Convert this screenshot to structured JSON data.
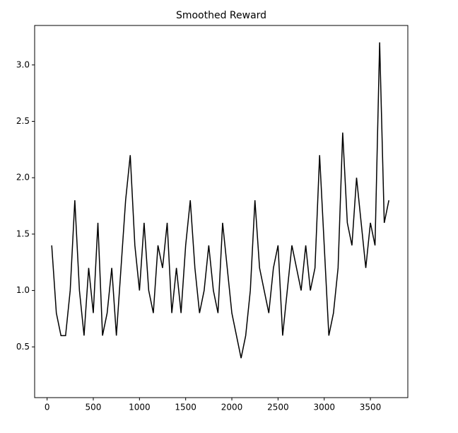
{
  "chart_data": {
    "type": "line",
    "title": "Smoothed Reward",
    "x": [
      50,
      100,
      150,
      200,
      250,
      300,
      350,
      400,
      450,
      500,
      550,
      600,
      650,
      700,
      750,
      800,
      850,
      900,
      950,
      1000,
      1050,
      1100,
      1150,
      1200,
      1250,
      1300,
      1350,
      1400,
      1450,
      1500,
      1550,
      1600,
      1650,
      1700,
      1750,
      1800,
      1850,
      1900,
      1950,
      2000,
      2050,
      2100,
      2150,
      2200,
      2250,
      2300,
      2350,
      2400,
      2450,
      2500,
      2550,
      2600,
      2650,
      2700,
      2750,
      2800,
      2850,
      2900,
      2950,
      3000,
      3050,
      3100,
      3150,
      3200,
      3250,
      3300,
      3350,
      3400,
      3450,
      3500,
      3550,
      3600,
      3650,
      3700
    ],
    "series": [
      {
        "color": "#000000",
        "values": [
          1.4,
          0.8,
          0.6,
          0.6,
          1.0,
          1.8,
          1.0,
          0.6,
          1.2,
          0.8,
          1.6,
          0.6,
          0.8,
          1.2,
          0.6,
          1.2,
          1.8,
          2.2,
          1.4,
          1.0,
          1.6,
          1.0,
          0.8,
          1.4,
          1.2,
          1.6,
          0.8,
          1.2,
          0.8,
          1.4,
          1.8,
          1.2,
          0.8,
          1.0,
          1.4,
          1.0,
          0.8,
          1.6,
          1.2,
          0.8,
          0.6,
          0.4,
          0.6,
          1.0,
          1.8,
          1.2,
          1.0,
          0.8,
          1.2,
          1.4,
          0.6,
          1.0,
          1.4,
          1.2,
          1.0,
          1.4,
          1.0,
          1.2,
          2.2,
          1.4,
          0.6,
          0.8,
          1.2,
          2.4,
          1.6,
          1.4,
          2.0,
          1.6,
          1.2,
          1.6,
          1.4,
          3.2,
          1.6,
          1.8
        ]
      }
    ],
    "xlim": [
      -135,
      3905
    ],
    "ylim": [
      0.05,
      3.35
    ],
    "xticks": [
      0,
      500,
      1000,
      1500,
      2000,
      2500,
      3000,
      3500
    ],
    "yticks": [
      {
        "value": 0.5,
        "label": "0.5"
      },
      {
        "value": 1,
        "label": "1.0"
      },
      {
        "value": 1.5,
        "label": "1.5"
      },
      {
        "value": 2,
        "label": "2.0"
      },
      {
        "value": 2.5,
        "label": "2.5"
      },
      {
        "value": 3,
        "label": "3.0"
      }
    ]
  }
}
